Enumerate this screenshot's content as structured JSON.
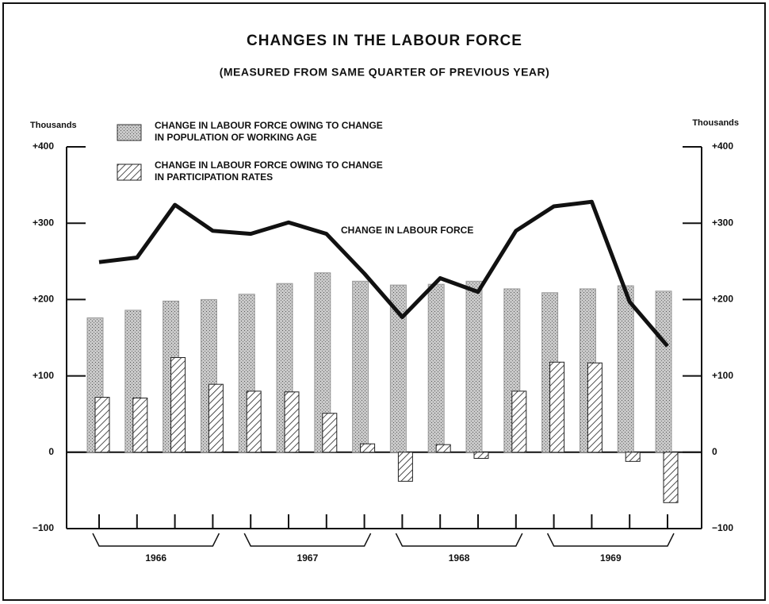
{
  "chart_data": {
    "type": "bar_line",
    "title": "CHANGES IN THE LABOUR FORCE",
    "subtitle": "(MEASURED FROM SAME QUARTER OF PREVIOUS YEAR)",
    "y_axis_label": "Thousands",
    "y2_axis_label": "Thousands",
    "line_label": "CHANGE IN LABOUR FORCE",
    "categories": [
      null,
      null,
      null,
      null,
      null,
      null,
      null,
      null,
      null,
      null,
      null,
      null,
      null,
      null,
      null,
      null
    ],
    "year_groups": [
      "1966",
      "1967",
      "1968",
      "1969"
    ],
    "series": [
      {
        "name": "CHANGE IN LABOUR FORCE OWING TO CHANGE IN POPULATION OF WORKING AGE",
        "kind": "bar",
        "color": "#b8b8b8",
        "values": [
          176,
          186,
          198,
          200,
          207,
          221,
          235,
          224,
          219,
          220,
          224,
          214,
          209,
          214,
          218,
          211
        ]
      },
      {
        "name": "CHANGE IN LABOUR FORCE OWING TO CHANGE IN PARTICIPATION RATES",
        "kind": "bar",
        "color": "#222222",
        "values": [
          72,
          71,
          124,
          89,
          80,
          79,
          51,
          11,
          -38,
          10,
          -8,
          80,
          118,
          117,
          -12,
          -66
        ]
      },
      {
        "name": "CHANGE IN LABOUR FORCE",
        "kind": "line",
        "color": "#111111",
        "values": [
          249,
          255,
          324,
          290,
          286,
          301,
          286,
          234,
          177,
          228,
          210,
          290,
          322,
          328,
          197,
          139
        ]
      }
    ],
    "ylim": [
      -100,
      400
    ],
    "yticks": [
      {
        "value": 400,
        "label": "+400"
      },
      {
        "value": 300,
        "label": "+300"
      },
      {
        "value": 200,
        "label": "+200"
      },
      {
        "value": 100,
        "label": "+100"
      },
      0,
      {
        "value": -100,
        "label": "−100"
      }
    ],
    "y2lim": [
      -100,
      400
    ],
    "y2ticks": [
      {
        "value": 400,
        "label": "+400"
      },
      {
        "value": 300,
        "label": "+300"
      },
      {
        "value": 200,
        "label": "+200"
      },
      {
        "value": 100,
        "label": "+100"
      },
      0,
      {
        "value": -100,
        "label": "−100"
      }
    ]
  }
}
